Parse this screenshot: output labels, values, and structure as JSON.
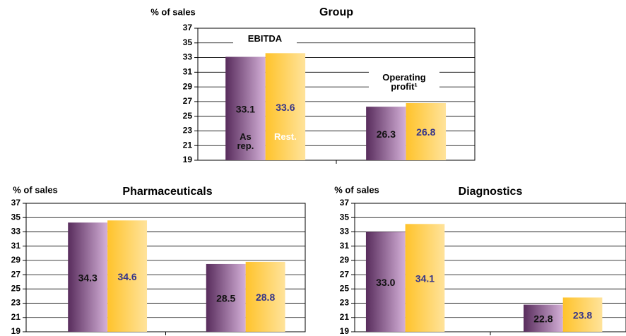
{
  "chart_data": [
    {
      "type": "bar",
      "title": "Group",
      "ylabel": "% of sales",
      "categories": [
        "EBITDA",
        "Operating profit¹"
      ],
      "series": [
        {
          "name": "As rep.",
          "color": "#a050a8",
          "values": [
            33.1,
            26.3
          ],
          "value_labels": [
            "33.1",
            "26.3"
          ]
        },
        {
          "name": "Rest.",
          "color": "#ffc020",
          "values": [
            33.6,
            26.8
          ],
          "value_labels": [
            "33.6",
            "26.8"
          ]
        }
      ],
      "ylim": [
        19,
        37
      ],
      "yticks": [
        19,
        21,
        23,
        25,
        27,
        29,
        31,
        33,
        35,
        37
      ],
      "grid": true
    },
    {
      "type": "bar",
      "title": "Pharmaceuticals",
      "ylabel": "% of sales",
      "categories": [
        null,
        null
      ],
      "series": [
        {
          "color": "#a050a8",
          "values": [
            34.3,
            28.5
          ],
          "value_labels": [
            "34.3",
            "28.5"
          ]
        },
        {
          "color": "#ffc020",
          "values": [
            34.6,
            28.8
          ],
          "value_labels": [
            "34.6",
            "28.8"
          ]
        }
      ],
      "ylim": [
        19,
        37
      ],
      "yticks": [
        19,
        21,
        23,
        25,
        27,
        29,
        31,
        33,
        35,
        37
      ],
      "grid": true
    },
    {
      "type": "bar",
      "title": "Diagnostics",
      "ylabel": "% of sales",
      "categories": [
        null,
        null
      ],
      "series": [
        {
          "color": "#a050a8",
          "values": [
            33.0,
            22.8
          ],
          "value_labels": [
            "33.0",
            "22.8"
          ]
        },
        {
          "color": "#ffc020",
          "values": [
            34.1,
            23.8
          ],
          "value_labels": [
            "34.1",
            "23.8"
          ]
        }
      ],
      "ylim": [
        19,
        37
      ],
      "yticks": [
        19,
        21,
        23,
        25,
        27,
        29,
        31,
        33,
        35,
        37
      ],
      "grid": true
    }
  ]
}
